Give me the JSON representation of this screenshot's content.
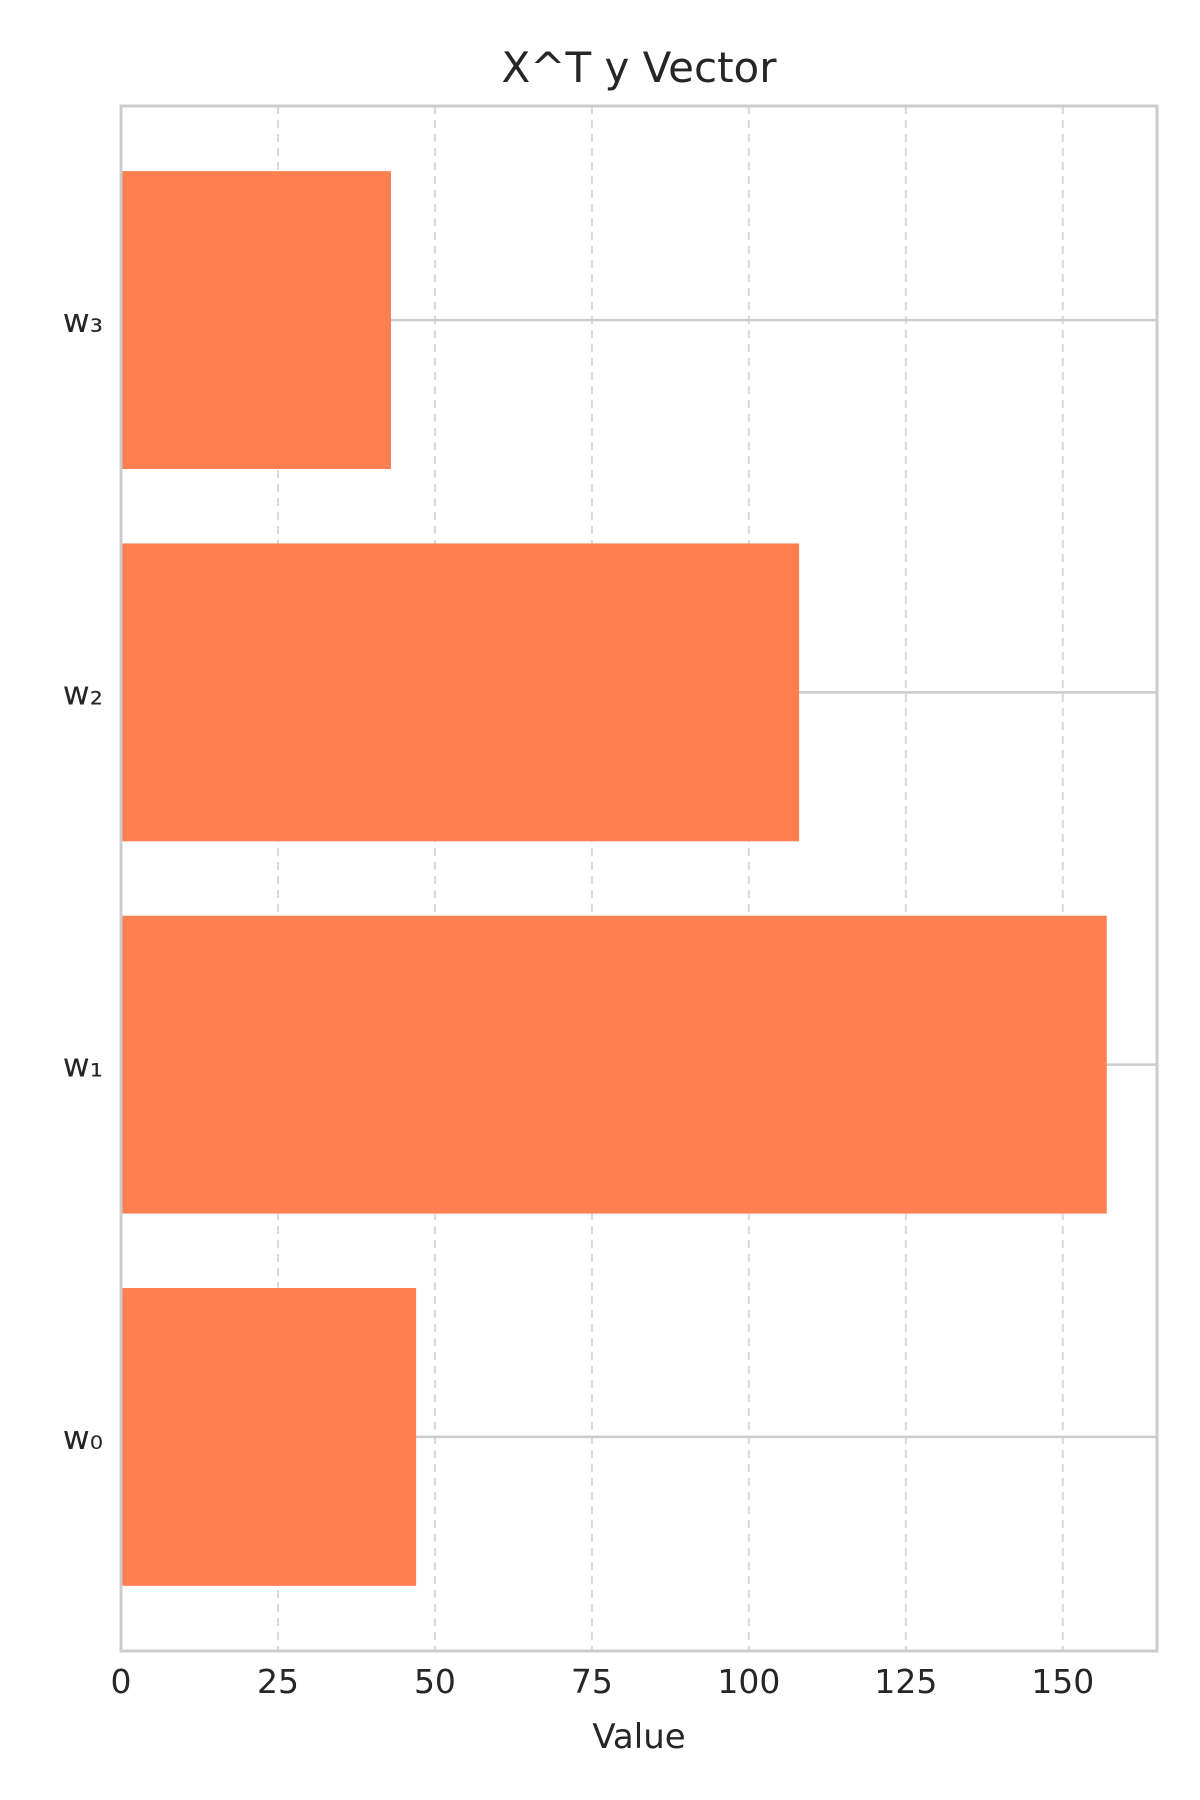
{
  "chart_data": {
    "type": "bar",
    "orientation": "horizontal",
    "title": "X^T y Vector",
    "xlabel": "Value",
    "ylabel": "",
    "categories": [
      "w₀",
      "w₁",
      "w₂",
      "w₃"
    ],
    "values": [
      47,
      157,
      108,
      43
    ],
    "xlim": [
      0,
      165
    ],
    "xticks": [
      0,
      25,
      50,
      75,
      100,
      125,
      150
    ],
    "grid": true,
    "legend": "none",
    "bar_color": "#ff7f50",
    "grid_color": "#cccccc",
    "spine_color": "#cccccc"
  }
}
